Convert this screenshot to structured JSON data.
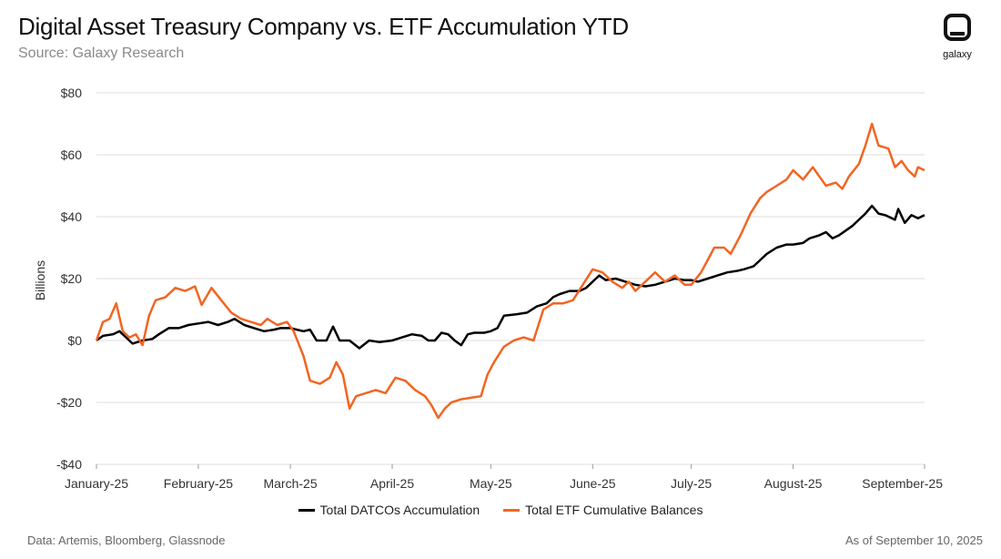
{
  "header": {
    "title": "Digital Asset Treasury Company vs. ETF Accumulation YTD",
    "subtitle": "Source: Galaxy Research"
  },
  "logo": {
    "word": "galaxy",
    "icon": "galaxy-logo-icon"
  },
  "footer": {
    "left": "Data: Artemis, Bloomberg, Glassnode",
    "right": "As of September 10, 2025"
  },
  "chart_data": {
    "type": "line",
    "title": "Digital Asset Treasury Company vs. ETF Accumulation YTD",
    "xlabel": "",
    "ylabel": "Billions",
    "ylim": [
      -40,
      80
    ],
    "yticks": [
      -40,
      -20,
      0,
      20,
      40,
      60,
      80
    ],
    "ytick_labels": [
      "-$40",
      "-$20",
      "$0",
      "$20",
      "$40",
      "$60",
      "$80"
    ],
    "xlim": [
      "2025-01-01",
      "2025-09-10"
    ],
    "xticks": [
      "2025-01-01",
      "2025-02-01",
      "2025-03-01",
      "2025-04-01",
      "2025-05-01",
      "2025-06-01",
      "2025-07-01",
      "2025-08-01",
      "2025-09-10"
    ],
    "xtick_labels": [
      "January-25",
      "February-25",
      "March-25",
      "April-25",
      "May-25",
      "June-25",
      "July-25",
      "August-25",
      "September-25"
    ],
    "grid": "horizontal",
    "legend_position": "bottom-center",
    "series": [
      {
        "name": "Total DATCOs Accumulation",
        "color": "#000000",
        "points": [
          [
            "2025-01-01",
            0
          ],
          [
            "2025-01-03",
            1.5
          ],
          [
            "2025-01-06",
            2
          ],
          [
            "2025-01-08",
            3
          ],
          [
            "2025-01-10",
            1
          ],
          [
            "2025-01-12",
            -1
          ],
          [
            "2025-01-15",
            0
          ],
          [
            "2025-01-18",
            0.5
          ],
          [
            "2025-01-20",
            2
          ],
          [
            "2025-01-23",
            4
          ],
          [
            "2025-01-26",
            4
          ],
          [
            "2025-01-29",
            5
          ],
          [
            "2025-02-01",
            5.5
          ],
          [
            "2025-02-04",
            6
          ],
          [
            "2025-02-07",
            5
          ],
          [
            "2025-02-10",
            6
          ],
          [
            "2025-02-12",
            7
          ],
          [
            "2025-02-15",
            5
          ],
          [
            "2025-02-18",
            4
          ],
          [
            "2025-02-21",
            3
          ],
          [
            "2025-02-24",
            3.5
          ],
          [
            "2025-02-26",
            4
          ],
          [
            "2025-03-01",
            4
          ],
          [
            "2025-03-03",
            3.5
          ],
          [
            "2025-03-05",
            3
          ],
          [
            "2025-03-07",
            3.5
          ],
          [
            "2025-03-09",
            0
          ],
          [
            "2025-03-12",
            0
          ],
          [
            "2025-03-14",
            4.5
          ],
          [
            "2025-03-16",
            0
          ],
          [
            "2025-03-19",
            0
          ],
          [
            "2025-03-22",
            -2.5
          ],
          [
            "2025-03-25",
            0
          ],
          [
            "2025-03-28",
            -0.5
          ],
          [
            "2025-04-01",
            0
          ],
          [
            "2025-04-04",
            1
          ],
          [
            "2025-04-07",
            2
          ],
          [
            "2025-04-10",
            1.5
          ],
          [
            "2025-04-12",
            0
          ],
          [
            "2025-04-14",
            0
          ],
          [
            "2025-04-16",
            2.5
          ],
          [
            "2025-04-18",
            2
          ],
          [
            "2025-04-20",
            0
          ],
          [
            "2025-04-22",
            -1.5
          ],
          [
            "2025-04-24",
            2
          ],
          [
            "2025-04-26",
            2.5
          ],
          [
            "2025-04-29",
            2.5
          ],
          [
            "2025-05-01",
            3
          ],
          [
            "2025-05-03",
            4
          ],
          [
            "2025-05-05",
            8
          ],
          [
            "2025-05-09",
            8.5
          ],
          [
            "2025-05-12",
            9
          ],
          [
            "2025-05-15",
            11
          ],
          [
            "2025-05-18",
            12
          ],
          [
            "2025-05-20",
            14
          ],
          [
            "2025-05-22",
            15
          ],
          [
            "2025-05-25",
            16
          ],
          [
            "2025-05-28",
            16
          ],
          [
            "2025-05-30",
            17
          ],
          [
            "2025-06-01",
            19
          ],
          [
            "2025-06-03",
            21
          ],
          [
            "2025-06-05",
            19.5
          ],
          [
            "2025-06-08",
            20
          ],
          [
            "2025-06-11",
            19
          ],
          [
            "2025-06-14",
            18
          ],
          [
            "2025-06-17",
            17.5
          ],
          [
            "2025-06-20",
            18
          ],
          [
            "2025-06-23",
            19
          ],
          [
            "2025-06-26",
            20
          ],
          [
            "2025-06-29",
            19.5
          ],
          [
            "2025-07-01",
            19.5
          ],
          [
            "2025-07-03",
            19
          ],
          [
            "2025-07-06",
            20
          ],
          [
            "2025-07-09",
            21
          ],
          [
            "2025-07-12",
            22
          ],
          [
            "2025-07-15",
            22.5
          ],
          [
            "2025-07-17",
            23
          ],
          [
            "2025-07-20",
            24
          ],
          [
            "2025-07-22",
            26
          ],
          [
            "2025-07-24",
            28
          ],
          [
            "2025-07-27",
            30
          ],
          [
            "2025-07-30",
            31
          ],
          [
            "2025-08-01",
            31
          ],
          [
            "2025-08-04",
            31.5
          ],
          [
            "2025-08-06",
            33
          ],
          [
            "2025-08-09",
            34
          ],
          [
            "2025-08-11",
            35
          ],
          [
            "2025-08-13",
            33
          ],
          [
            "2025-08-15",
            34
          ],
          [
            "2025-08-17",
            35.5
          ],
          [
            "2025-08-19",
            37
          ],
          [
            "2025-08-21",
            39
          ],
          [
            "2025-08-23",
            41
          ],
          [
            "2025-08-25",
            43.5
          ],
          [
            "2025-08-27",
            41
          ],
          [
            "2025-08-29",
            40.5
          ],
          [
            "2025-09-01",
            39
          ],
          [
            "2025-09-02",
            42.5
          ],
          [
            "2025-09-04",
            38
          ],
          [
            "2025-09-06",
            40.5
          ],
          [
            "2025-09-08",
            39.5
          ],
          [
            "2025-09-10",
            40.5
          ]
        ]
      },
      {
        "name": "Total ETF Cumulative Balances",
        "color": "#f26522",
        "points": [
          [
            "2025-01-01",
            0
          ],
          [
            "2025-01-03",
            6
          ],
          [
            "2025-01-05",
            7
          ],
          [
            "2025-01-07",
            12
          ],
          [
            "2025-01-09",
            3
          ],
          [
            "2025-01-11",
            1
          ],
          [
            "2025-01-13",
            2
          ],
          [
            "2025-01-15",
            -1.5
          ],
          [
            "2025-01-17",
            8
          ],
          [
            "2025-01-19",
            13
          ],
          [
            "2025-01-22",
            14
          ],
          [
            "2025-01-25",
            17
          ],
          [
            "2025-01-28",
            16
          ],
          [
            "2025-01-31",
            17.5
          ],
          [
            "2025-02-02",
            11.5
          ],
          [
            "2025-02-05",
            17
          ],
          [
            "2025-02-08",
            13
          ],
          [
            "2025-02-11",
            9
          ],
          [
            "2025-02-14",
            7
          ],
          [
            "2025-02-17",
            6
          ],
          [
            "2025-02-20",
            5
          ],
          [
            "2025-02-22",
            7
          ],
          [
            "2025-02-25",
            5
          ],
          [
            "2025-02-28",
            6
          ],
          [
            "2025-03-02",
            3
          ],
          [
            "2025-03-05",
            -5
          ],
          [
            "2025-03-07",
            -13
          ],
          [
            "2025-03-10",
            -14
          ],
          [
            "2025-03-13",
            -12
          ],
          [
            "2025-03-15",
            -7
          ],
          [
            "2025-03-17",
            -11
          ],
          [
            "2025-03-19",
            -22
          ],
          [
            "2025-03-21",
            -18
          ],
          [
            "2025-03-24",
            -17
          ],
          [
            "2025-03-27",
            -16
          ],
          [
            "2025-03-30",
            -17
          ],
          [
            "2025-04-02",
            -12
          ],
          [
            "2025-04-05",
            -13
          ],
          [
            "2025-04-08",
            -16
          ],
          [
            "2025-04-11",
            -18
          ],
          [
            "2025-04-13",
            -21
          ],
          [
            "2025-04-15",
            -25
          ],
          [
            "2025-04-17",
            -22
          ],
          [
            "2025-04-19",
            -20
          ],
          [
            "2025-04-22",
            -19
          ],
          [
            "2025-04-25",
            -18.5
          ],
          [
            "2025-04-28",
            -18
          ],
          [
            "2025-04-30",
            -11
          ],
          [
            "2025-05-02",
            -7
          ],
          [
            "2025-05-05",
            -2
          ],
          [
            "2025-05-08",
            0
          ],
          [
            "2025-05-11",
            1
          ],
          [
            "2025-05-14",
            0
          ],
          [
            "2025-05-17",
            10
          ],
          [
            "2025-05-20",
            12
          ],
          [
            "2025-05-23",
            12
          ],
          [
            "2025-05-26",
            13
          ],
          [
            "2025-05-29",
            18
          ],
          [
            "2025-06-01",
            23
          ],
          [
            "2025-06-04",
            22
          ],
          [
            "2025-06-07",
            19
          ],
          [
            "2025-06-10",
            17
          ],
          [
            "2025-06-12",
            19
          ],
          [
            "2025-06-14",
            16
          ],
          [
            "2025-06-17",
            19
          ],
          [
            "2025-06-20",
            22
          ],
          [
            "2025-06-23",
            19
          ],
          [
            "2025-06-26",
            21
          ],
          [
            "2025-06-29",
            18
          ],
          [
            "2025-07-01",
            18
          ],
          [
            "2025-07-04",
            22
          ],
          [
            "2025-07-06",
            26
          ],
          [
            "2025-07-08",
            30
          ],
          [
            "2025-07-11",
            30
          ],
          [
            "2025-07-13",
            28
          ],
          [
            "2025-07-16",
            34
          ],
          [
            "2025-07-19",
            41
          ],
          [
            "2025-07-22",
            46
          ],
          [
            "2025-07-24",
            48
          ],
          [
            "2025-07-27",
            50
          ],
          [
            "2025-07-30",
            52
          ],
          [
            "2025-08-01",
            55
          ],
          [
            "2025-08-04",
            52
          ],
          [
            "2025-08-07",
            56
          ],
          [
            "2025-08-09",
            53
          ],
          [
            "2025-08-11",
            50
          ],
          [
            "2025-08-14",
            51
          ],
          [
            "2025-08-16",
            49
          ],
          [
            "2025-08-18",
            53
          ],
          [
            "2025-08-21",
            57
          ],
          [
            "2025-08-23",
            63
          ],
          [
            "2025-08-25",
            70
          ],
          [
            "2025-08-27",
            63
          ],
          [
            "2025-08-30",
            62
          ],
          [
            "2025-09-01",
            56
          ],
          [
            "2025-09-03",
            58
          ],
          [
            "2025-09-05",
            55
          ],
          [
            "2025-09-07",
            53
          ],
          [
            "2025-09-08",
            56
          ],
          [
            "2025-09-10",
            55
          ]
        ]
      }
    ]
  }
}
